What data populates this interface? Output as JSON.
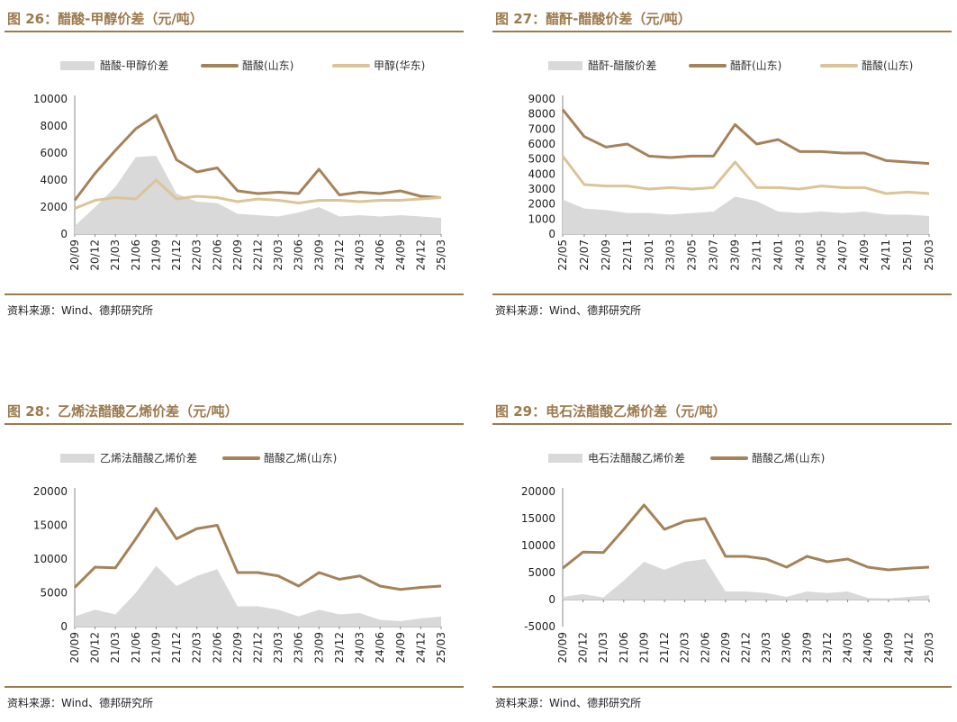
{
  "chart_data": [
    {
      "type": "area+line",
      "title": "图 26：醋酸-甲醇价差（元/吨）",
      "source": "资料来源：Wind、德邦研究所",
      "ylim": [
        0,
        10000
      ],
      "yticks": [
        0,
        2000,
        4000,
        6000,
        8000,
        10000
      ],
      "xticks": [
        "20/09",
        "20/12",
        "21/03",
        "21/06",
        "21/09",
        "21/12",
        "22/03",
        "22/06",
        "22/09",
        "22/12",
        "23/03",
        "23/06",
        "23/09",
        "23/12",
        "24/03",
        "24/06",
        "24/09",
        "24/12",
        "25/03"
      ],
      "x": [
        "20/09",
        "20/12",
        "21/03",
        "21/06",
        "21/09",
        "21/12",
        "22/03",
        "22/06",
        "22/09",
        "22/12",
        "23/03",
        "23/06",
        "23/09",
        "23/12",
        "24/03",
        "24/06",
        "24/09",
        "24/12",
        "25/03"
      ],
      "legend_position": "top",
      "series": [
        {
          "name": "醋酸-甲醇价差",
          "kind": "area",
          "color": "#d9d9d9",
          "values": [
            600,
            2000,
            3500,
            5700,
            5800,
            3000,
            2400,
            2300,
            1500,
            1400,
            1300,
            1600,
            2000,
            1300,
            1400,
            1300,
            1400,
            1300,
            1200
          ]
        },
        {
          "name": "醋酸(山东)",
          "kind": "line",
          "color": "#a5835a",
          "values": [
            2500,
            4500,
            6200,
            7800,
            8800,
            5500,
            4600,
            4900,
            3200,
            3000,
            3100,
            3000,
            4800,
            2900,
            3100,
            3000,
            3200,
            2800,
            2700
          ]
        },
        {
          "name": "甲醇(华东)",
          "kind": "line",
          "color": "#dcc498",
          "values": [
            1900,
            2500,
            2700,
            2600,
            4000,
            2600,
            2800,
            2700,
            2400,
            2600,
            2500,
            2300,
            2500,
            2500,
            2400,
            2500,
            2500,
            2600,
            2700
          ]
        }
      ]
    },
    {
      "type": "area+line",
      "title": "图 27：醋酐-醋酸价差（元/吨）",
      "source": "资料来源：Wind、德邦研究所",
      "ylim": [
        0,
        9000
      ],
      "yticks": [
        0,
        1000,
        2000,
        3000,
        4000,
        5000,
        6000,
        7000,
        8000,
        9000
      ],
      "xticks": [
        "22/05",
        "22/07",
        "22/09",
        "22/11",
        "23/01",
        "23/03",
        "23/05",
        "23/07",
        "23/09",
        "23/11",
        "24/01",
        "24/03",
        "24/05",
        "24/07",
        "24/09",
        "24/11",
        "25/01",
        "25/03"
      ],
      "x": [
        "22/05",
        "22/07",
        "22/09",
        "22/11",
        "23/01",
        "23/03",
        "23/05",
        "23/07",
        "23/09",
        "23/11",
        "24/01",
        "24/03",
        "24/05",
        "24/07",
        "24/09",
        "24/11",
        "25/01",
        "25/03"
      ],
      "legend_position": "top",
      "series": [
        {
          "name": "醋酐-醋酸价差",
          "kind": "area",
          "color": "#d9d9d9",
          "values": [
            2300,
            1700,
            1600,
            1400,
            1400,
            1300,
            1400,
            1500,
            2500,
            2200,
            1500,
            1400,
            1500,
            1400,
            1500,
            1300,
            1300,
            1200
          ]
        },
        {
          "name": "醋酐(山东)",
          "kind": "line",
          "color": "#a5835a",
          "values": [
            8300,
            6500,
            5800,
            6000,
            5200,
            5100,
            5200,
            5200,
            7300,
            6000,
            6300,
            5500,
            5500,
            5400,
            5400,
            4900,
            4800,
            4700
          ]
        },
        {
          "name": "醋酸(山东)",
          "kind": "line",
          "color": "#dcc498",
          "values": [
            5200,
            3300,
            3200,
            3200,
            3000,
            3100,
            3000,
            3100,
            4800,
            3100,
            3100,
            3000,
            3200,
            3100,
            3100,
            2700,
            2800,
            2700
          ]
        }
      ]
    },
    {
      "type": "area+line",
      "title": "图 28：乙烯法醋酸乙烯价差（元/吨）",
      "source": "资料来源：Wind、德邦研究所",
      "ylim": [
        0,
        20000
      ],
      "yticks": [
        0,
        5000,
        10000,
        15000,
        20000
      ],
      "xticks": [
        "20/09",
        "20/12",
        "21/03",
        "21/06",
        "21/09",
        "21/12",
        "22/03",
        "22/06",
        "22/09",
        "22/12",
        "23/03",
        "23/06",
        "23/09",
        "23/12",
        "24/03",
        "24/06",
        "24/09",
        "24/12",
        "25/03"
      ],
      "x": [
        "20/09",
        "20/12",
        "21/03",
        "21/06",
        "21/09",
        "21/12",
        "22/03",
        "22/06",
        "22/09",
        "22/12",
        "23/03",
        "23/06",
        "23/09",
        "23/12",
        "24/03",
        "24/06",
        "24/09",
        "24/12",
        "25/03"
      ],
      "legend_position": "top",
      "series": [
        {
          "name": "乙烯法醋酸乙烯价差",
          "kind": "area",
          "color": "#d9d9d9",
          "values": [
            1500,
            2500,
            1800,
            5000,
            9000,
            6000,
            7500,
            8500,
            3000,
            3000,
            2500,
            1500,
            2500,
            1800,
            2000,
            1000,
            800,
            1200,
            1500
          ]
        },
        {
          "name": "醋酸乙烯(山东)",
          "kind": "line",
          "color": "#a5835a",
          "values": [
            5800,
            8800,
            8700,
            13000,
            17500,
            13000,
            14500,
            15000,
            8000,
            8000,
            7500,
            6000,
            8000,
            7000,
            7500,
            6000,
            5500,
            5800,
            6000
          ]
        }
      ]
    },
    {
      "type": "area+line",
      "title": "图 29：电石法醋酸乙烯价差（元/吨）",
      "source": "资料来源：Wind、德邦研究所",
      "ylim": [
        -5000,
        20000
      ],
      "yticks": [
        -5000,
        0,
        5000,
        10000,
        15000,
        20000
      ],
      "xticks": [
        "20/09",
        "20/12",
        "21/03",
        "21/06",
        "21/09",
        "21/12",
        "22/03",
        "22/06",
        "22/09",
        "22/12",
        "23/03",
        "23/06",
        "23/09",
        "23/12",
        "24/03",
        "24/06",
        "24/09",
        "24/12",
        "25/03"
      ],
      "x": [
        "20/09",
        "20/12",
        "21/03",
        "21/06",
        "21/09",
        "21/12",
        "22/03",
        "22/06",
        "22/09",
        "22/12",
        "23/03",
        "23/06",
        "23/09",
        "23/12",
        "24/03",
        "24/06",
        "24/09",
        "24/12",
        "25/03"
      ],
      "legend_position": "top",
      "series": [
        {
          "name": "电石法醋酸乙烯价差",
          "kind": "area",
          "color": "#d9d9d9",
          "values": [
            500,
            1000,
            400,
            3500,
            7000,
            5500,
            7000,
            7500,
            1500,
            1500,
            1200,
            500,
            1500,
            1200,
            1500,
            300,
            200,
            500,
            800
          ]
        },
        {
          "name": "醋酸乙烯(山东)",
          "kind": "line",
          "color": "#a5835a",
          "values": [
            5800,
            8800,
            8700,
            13000,
            17500,
            13000,
            14500,
            15000,
            8000,
            8000,
            7500,
            6000,
            8000,
            7000,
            7500,
            6000,
            5500,
            5800,
            6000
          ]
        }
      ]
    }
  ]
}
